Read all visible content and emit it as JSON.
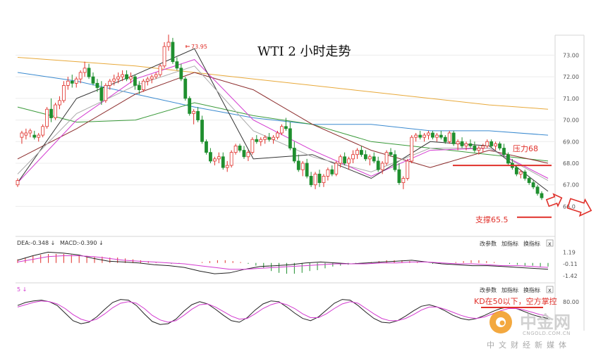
{
  "chart_data": {
    "type": "line",
    "title": "WTI 2 小时走势",
    "main_panel": {
      "y_ticks": [
        73.0,
        72.0,
        71.0,
        70.0,
        69.0,
        68.0,
        67.0,
        66.0
      ],
      "y_tick_labels": [
        "73.00",
        "72.00",
        "71.00",
        "70.00",
        "69.00",
        "68.00",
        "67.00",
        "66.0"
      ],
      "ylim": [
        65.2,
        73.6
      ],
      "peak_label": "73.95",
      "candles": [
        [
          67.0,
          67.3,
          66.9,
          67.2
        ],
        [
          69.2,
          69.5,
          68.9,
          69.4
        ],
        [
          69.3,
          69.6,
          69.1,
          69.4
        ],
        [
          69.4,
          69.6,
          69.2,
          69.5
        ],
        [
          69.3,
          69.5,
          69.1,
          69.2
        ],
        [
          69.2,
          69.4,
          69.0,
          69.3
        ],
        [
          69.3,
          69.8,
          69.2,
          69.7
        ],
        [
          69.7,
          70.6,
          69.6,
          70.5
        ],
        [
          70.5,
          71.0,
          69.9,
          70.1
        ],
        [
          70.1,
          70.8,
          70.0,
          70.7
        ],
        [
          70.7,
          71.1,
          70.5,
          70.9
        ],
        [
          70.9,
          71.8,
          70.8,
          71.6
        ],
        [
          71.6,
          72.0,
          71.4,
          71.8
        ],
        [
          71.8,
          72.1,
          71.5,
          71.7
        ],
        [
          71.7,
          72.0,
          71.5,
          71.9
        ],
        [
          71.9,
          72.3,
          71.7,
          72.2
        ],
        [
          72.2,
          72.7,
          72.0,
          72.4
        ],
        [
          72.4,
          72.6,
          71.9,
          72.0
        ],
        [
          72.0,
          72.2,
          71.6,
          71.7
        ],
        [
          71.7,
          71.9,
          71.3,
          71.5
        ],
        [
          71.5,
          71.8,
          70.7,
          70.9
        ],
        [
          70.9,
          71.7,
          70.8,
          71.6
        ],
        [
          71.6,
          71.9,
          71.4,
          71.8
        ],
        [
          71.8,
          72.1,
          71.6,
          71.9
        ],
        [
          71.9,
          72.2,
          71.7,
          72.0
        ],
        [
          72.0,
          72.3,
          71.8,
          72.1
        ],
        [
          72.1,
          72.3,
          71.8,
          71.9
        ],
        [
          71.9,
          72.2,
          71.7,
          72.0
        ],
        [
          72.0,
          72.1,
          71.4,
          71.6
        ],
        [
          71.6,
          71.8,
          71.2,
          71.4
        ],
        [
          71.4,
          71.9,
          71.3,
          71.8
        ],
        [
          71.8,
          72.0,
          71.6,
          71.9
        ],
        [
          71.9,
          72.1,
          71.7,
          72.0
        ],
        [
          72.0,
          72.2,
          71.9,
          72.1
        ],
        [
          72.1,
          72.6,
          72.0,
          72.5
        ],
        [
          72.5,
          73.6,
          72.4,
          73.4
        ],
        [
          73.4,
          73.95,
          73.2,
          73.6
        ],
        [
          73.6,
          73.8,
          72.6,
          72.7
        ],
        [
          72.7,
          72.9,
          72.3,
          72.4
        ],
        [
          72.4,
          72.6,
          71.8,
          71.9
        ],
        [
          71.9,
          72.0,
          70.9,
          71.0
        ],
        [
          71.0,
          71.1,
          70.2,
          70.3
        ],
        [
          70.3,
          70.5,
          69.8,
          70.4
        ],
        [
          70.4,
          70.6,
          69.9,
          70.0
        ],
        [
          70.0,
          70.2,
          68.9,
          69.0
        ],
        [
          69.0,
          69.1,
          68.4,
          68.5
        ],
        [
          68.5,
          68.7,
          68.0,
          68.1
        ],
        [
          68.1,
          68.3,
          67.9,
          68.2
        ],
        [
          68.2,
          68.5,
          68.0,
          68.3
        ],
        [
          68.3,
          68.5,
          67.7,
          67.8
        ],
        [
          67.8,
          68.1,
          67.6,
          67.9
        ],
        [
          67.9,
          68.6,
          67.8,
          68.5
        ],
        [
          68.5,
          68.9,
          68.4,
          68.8
        ],
        [
          68.8,
          68.9,
          68.5,
          68.6
        ],
        [
          68.6,
          68.8,
          68.2,
          68.3
        ],
        [
          68.3,
          68.6,
          68.1,
          68.5
        ],
        [
          68.5,
          69.2,
          68.4,
          69.1
        ],
        [
          69.1,
          69.3,
          68.9,
          69.0
        ],
        [
          69.0,
          69.2,
          68.8,
          69.1
        ],
        [
          69.1,
          69.3,
          68.9,
          69.2
        ],
        [
          69.2,
          69.4,
          69.0,
          69.1
        ],
        [
          69.1,
          69.3,
          68.9,
          69.2
        ],
        [
          69.2,
          69.5,
          69.1,
          69.4
        ],
        [
          69.4,
          69.8,
          69.3,
          69.7
        ],
        [
          69.7,
          70.1,
          69.5,
          69.6
        ],
        [
          69.6,
          69.9,
          68.6,
          68.7
        ],
        [
          68.7,
          69.0,
          68.0,
          68.1
        ],
        [
          68.1,
          68.4,
          67.6,
          67.7
        ],
        [
          67.7,
          68.1,
          67.4,
          68.0
        ],
        [
          68.0,
          68.2,
          67.3,
          67.4
        ],
        [
          67.4,
          67.6,
          66.9,
          67.0
        ],
        [
          67.0,
          67.6,
          66.8,
          67.5
        ],
        [
          67.5,
          67.7,
          66.9,
          67.1
        ],
        [
          67.1,
          67.5,
          66.9,
          67.4
        ],
        [
          67.4,
          67.8,
          67.2,
          67.7
        ],
        [
          67.7,
          67.9,
          67.4,
          67.5
        ],
        [
          67.5,
          68.1,
          67.4,
          68.0
        ],
        [
          68.0,
          68.4,
          67.8,
          68.3
        ],
        [
          68.3,
          68.5,
          67.9,
          68.0
        ],
        [
          68.0,
          68.3,
          67.7,
          68.2
        ],
        [
          68.2,
          68.6,
          68.0,
          68.4
        ],
        [
          68.4,
          68.7,
          68.2,
          68.6
        ],
        [
          68.6,
          68.8,
          68.3,
          68.4
        ],
        [
          68.4,
          68.6,
          68.1,
          68.2
        ],
        [
          68.2,
          68.4,
          67.9,
          68.3
        ],
        [
          68.3,
          68.5,
          68.0,
          68.1
        ],
        [
          68.1,
          68.3,
          67.6,
          67.7
        ],
        [
          67.7,
          68.1,
          67.5,
          68.0
        ],
        [
          68.0,
          68.6,
          67.9,
          68.5
        ],
        [
          68.5,
          68.7,
          68.3,
          68.4
        ],
        [
          68.4,
          68.6,
          67.6,
          67.7
        ],
        [
          67.7,
          68.0,
          67.0,
          67.1
        ],
        [
          67.1,
          67.4,
          66.8,
          67.3
        ],
        [
          67.3,
          68.2,
          67.2,
          68.1
        ],
        [
          68.1,
          69.3,
          68.0,
          69.2
        ],
        [
          69.2,
          69.4,
          69.0,
          69.3
        ],
        [
          69.3,
          69.5,
          69.1,
          69.2
        ],
        [
          69.2,
          69.4,
          69.0,
          69.3
        ],
        [
          69.3,
          69.5,
          69.1,
          69.4
        ],
        [
          69.4,
          69.5,
          69.1,
          69.2
        ],
        [
          69.2,
          69.4,
          69.0,
          69.3
        ],
        [
          69.3,
          69.5,
          69.1,
          69.2
        ],
        [
          69.2,
          69.3,
          68.9,
          69.0
        ],
        [
          69.0,
          69.5,
          68.9,
          69.4
        ],
        [
          69.4,
          69.5,
          68.8,
          68.9
        ],
        [
          68.9,
          69.1,
          68.6,
          69.0
        ],
        [
          69.0,
          69.2,
          68.7,
          68.8
        ],
        [
          68.8,
          69.0,
          68.6,
          68.9
        ],
        [
          68.9,
          69.1,
          68.7,
          68.8
        ],
        [
          68.8,
          69.0,
          68.5,
          68.6
        ],
        [
          68.6,
          68.8,
          68.4,
          68.7
        ],
        [
          68.7,
          68.9,
          68.5,
          68.8
        ],
        [
          68.8,
          69.1,
          68.7,
          69.0
        ],
        [
          69.0,
          69.1,
          68.7,
          68.8
        ],
        [
          68.8,
          69.0,
          68.6,
          68.9
        ],
        [
          68.9,
          69.0,
          68.6,
          68.7
        ],
        [
          68.7,
          68.9,
          68.3,
          68.4
        ],
        [
          68.4,
          68.5,
          67.9,
          68.0
        ],
        [
          68.0,
          68.2,
          67.7,
          67.8
        ],
        [
          67.8,
          67.9,
          67.4,
          67.5
        ],
        [
          67.5,
          67.7,
          67.3,
          67.6
        ],
        [
          67.6,
          67.7,
          67.2,
          67.3
        ],
        [
          67.3,
          67.4,
          67.0,
          67.1
        ],
        [
          67.1,
          67.2,
          66.8,
          66.9
        ],
        [
          66.9,
          67.0,
          66.5,
          66.6
        ],
        [
          66.6,
          66.7,
          66.3,
          66.4
        ]
      ],
      "ma_series": [
        {
          "color": "#e8a93a",
          "values": [
            72.9,
            72.7,
            72.5,
            72.2,
            71.9,
            71.6,
            71.3,
            71.0,
            70.7,
            70.5
          ]
        },
        {
          "color": "#3a8ad0",
          "values": [
            72.2,
            71.8,
            71.2,
            70.6,
            70.1,
            69.8,
            69.8,
            69.5,
            69.5,
            69.3
          ]
        },
        {
          "color": "#3a9a3a",
          "values": [
            70.6,
            69.9,
            70.0,
            70.8,
            70.2,
            69.8,
            69.0,
            68.7,
            68.4,
            68.1
          ]
        },
        {
          "color": "#8b2a2a",
          "values": [
            68.2,
            69.6,
            71.2,
            72.2,
            71.4,
            69.8,
            68.6,
            67.8,
            68.6,
            68.0
          ]
        },
        {
          "color": "#d33ad0",
          "values": [
            67.1,
            70.0,
            71.9,
            72.8,
            70.0,
            68.6,
            67.4,
            68.6,
            68.7,
            67.3
          ]
        },
        {
          "color": "#333333",
          "values": [
            67.1,
            71.0,
            72.1,
            73.3,
            68.2,
            68.4,
            67.3,
            69.0,
            68.8,
            66.7
          ]
        },
        {
          "color": "#aaaaaa",
          "values": [
            67.5,
            70.3,
            71.6,
            72.5,
            69.5,
            68.3,
            67.6,
            68.7,
            68.7,
            67.2
          ]
        }
      ],
      "resistance": {
        "label": "压力68",
        "value": 67.9
      },
      "support": {
        "label": "支撑65.5",
        "value": 65.5
      }
    },
    "macd_panel": {
      "legend": [
        "DEA:-0.348 ↓",
        "MACD:-0.390 ↓"
      ],
      "y_ticks": [
        1.19,
        -0.11,
        -1.42
      ],
      "y_tick_labels": [
        "1.19",
        "-0.11",
        "-1.42"
      ],
      "ylim": [
        -1.9,
        1.7
      ],
      "buttons": [
        "改参数",
        "加指标",
        "换指标"
      ],
      "close_label": "x",
      "histogram": [
        0.4,
        0.6,
        0.8,
        0.9,
        1.0,
        1.0,
        1.0,
        0.9,
        0.9,
        0.8,
        0.7,
        0.7,
        0.6,
        0.6,
        0.5,
        0.4,
        0.3,
        0.2,
        0.1,
        0.0,
        -0.1,
        -0.1,
        0.0,
        0.0,
        0.1,
        0.2,
        0.3,
        0.3,
        0.2,
        0.1,
        -0.1,
        -0.3,
        -0.6,
        -0.9,
        -1.1,
        -1.2,
        -1.2,
        -1.1,
        -0.9,
        -0.8,
        -0.6,
        -0.4,
        -0.3,
        -0.2,
        -0.1,
        0.0,
        0.1,
        0.2,
        0.3,
        0.3,
        0.3,
        0.2,
        0.1,
        0.0,
        -0.1,
        -0.1,
        0.0,
        0.1,
        0.2,
        0.3,
        0.3,
        0.2,
        0.1,
        0.0,
        -0.1,
        -0.2,
        -0.3,
        -0.3,
        -0.4,
        -0.4
      ],
      "dif": [
        0.3,
        0.8,
        1.2,
        1.1,
        0.9,
        0.5,
        0.2,
        0.1,
        0.0,
        -0.2,
        -0.3,
        -0.5,
        -0.9,
        -1.2,
        -1.1,
        -0.7,
        -0.4,
        -0.3,
        -0.2,
        0.0,
        0.1,
        0.0,
        -0.1,
        0.0,
        0.1,
        0.2,
        0.3,
        0.1,
        -0.1,
        -0.2,
        -0.3,
        -0.3,
        -0.4,
        -0.5,
        -0.6,
        -0.7
      ],
      "dea": [
        0.1,
        0.4,
        0.7,
        0.8,
        0.8,
        0.7,
        0.5,
        0.3,
        0.2,
        0.1,
        0.0,
        -0.1,
        -0.3,
        -0.5,
        -0.7,
        -0.7,
        -0.6,
        -0.5,
        -0.4,
        -0.3,
        -0.2,
        -0.1,
        -0.1,
        -0.1,
        0.0,
        0.0,
        0.1,
        0.1,
        0.0,
        -0.1,
        -0.1,
        -0.2,
        -0.3,
        -0.3,
        -0.4,
        -0.5
      ]
    },
    "kd_panel": {
      "legend": "5 ↓",
      "y_ticks": [
        80.0
      ],
      "y_tick_labels": [
        "80.00"
      ],
      "ylim": [
        0,
        100
      ],
      "buttons": [
        "改参数",
        "加指标",
        "换指标"
      ],
      "close_label": "x",
      "annotation": "KD在50以下，空方掌控",
      "k": [
        70,
        78,
        82,
        84,
        80,
        70,
        50,
        30,
        22,
        26,
        40,
        60,
        78,
        86,
        84,
        70,
        48,
        28,
        20,
        22,
        34,
        55,
        72,
        80,
        74,
        60,
        44,
        30,
        26,
        38,
        58,
        74,
        82,
        80,
        66,
        50,
        36,
        30,
        40,
        58,
        76,
        86,
        84,
        70,
        52,
        36,
        26,
        24,
        30,
        42,
        56,
        68,
        72,
        66,
        56,
        44,
        36,
        32,
        36,
        44,
        54,
        62,
        66,
        62,
        54,
        46,
        40,
        36
      ],
      "d": [
        66,
        72,
        78,
        82,
        80,
        74,
        62,
        46,
        34,
        28,
        34,
        48,
        64,
        76,
        80,
        76,
        62,
        44,
        32,
        26,
        30,
        44,
        60,
        72,
        74,
        66,
        54,
        42,
        34,
        36,
        48,
        62,
        72,
        78,
        72,
        62,
        48,
        38,
        38,
        48,
        62,
        74,
        80,
        76,
        62,
        48,
        36,
        30,
        30,
        36,
        46,
        58,
        66,
        66,
        60,
        52,
        44,
        38,
        36,
        40,
        48,
        56,
        62,
        62,
        58,
        52,
        46,
        42
      ]
    },
    "resistance_label": "压力68",
    "support_label": "支撑65.5",
    "kd_annotation": "KD在50以下，空方掌控"
  },
  "watermark": {
    "brand": "中金网",
    "domain": "CNGOLD.COM.CN",
    "tagline": "中文财经新媒体"
  },
  "colors": {
    "up": "#e0302a",
    "down": "#1f8f2f",
    "annotation_red": "#e0302a",
    "grid": "#ececec",
    "watermark_orange": "#f29a1e"
  }
}
